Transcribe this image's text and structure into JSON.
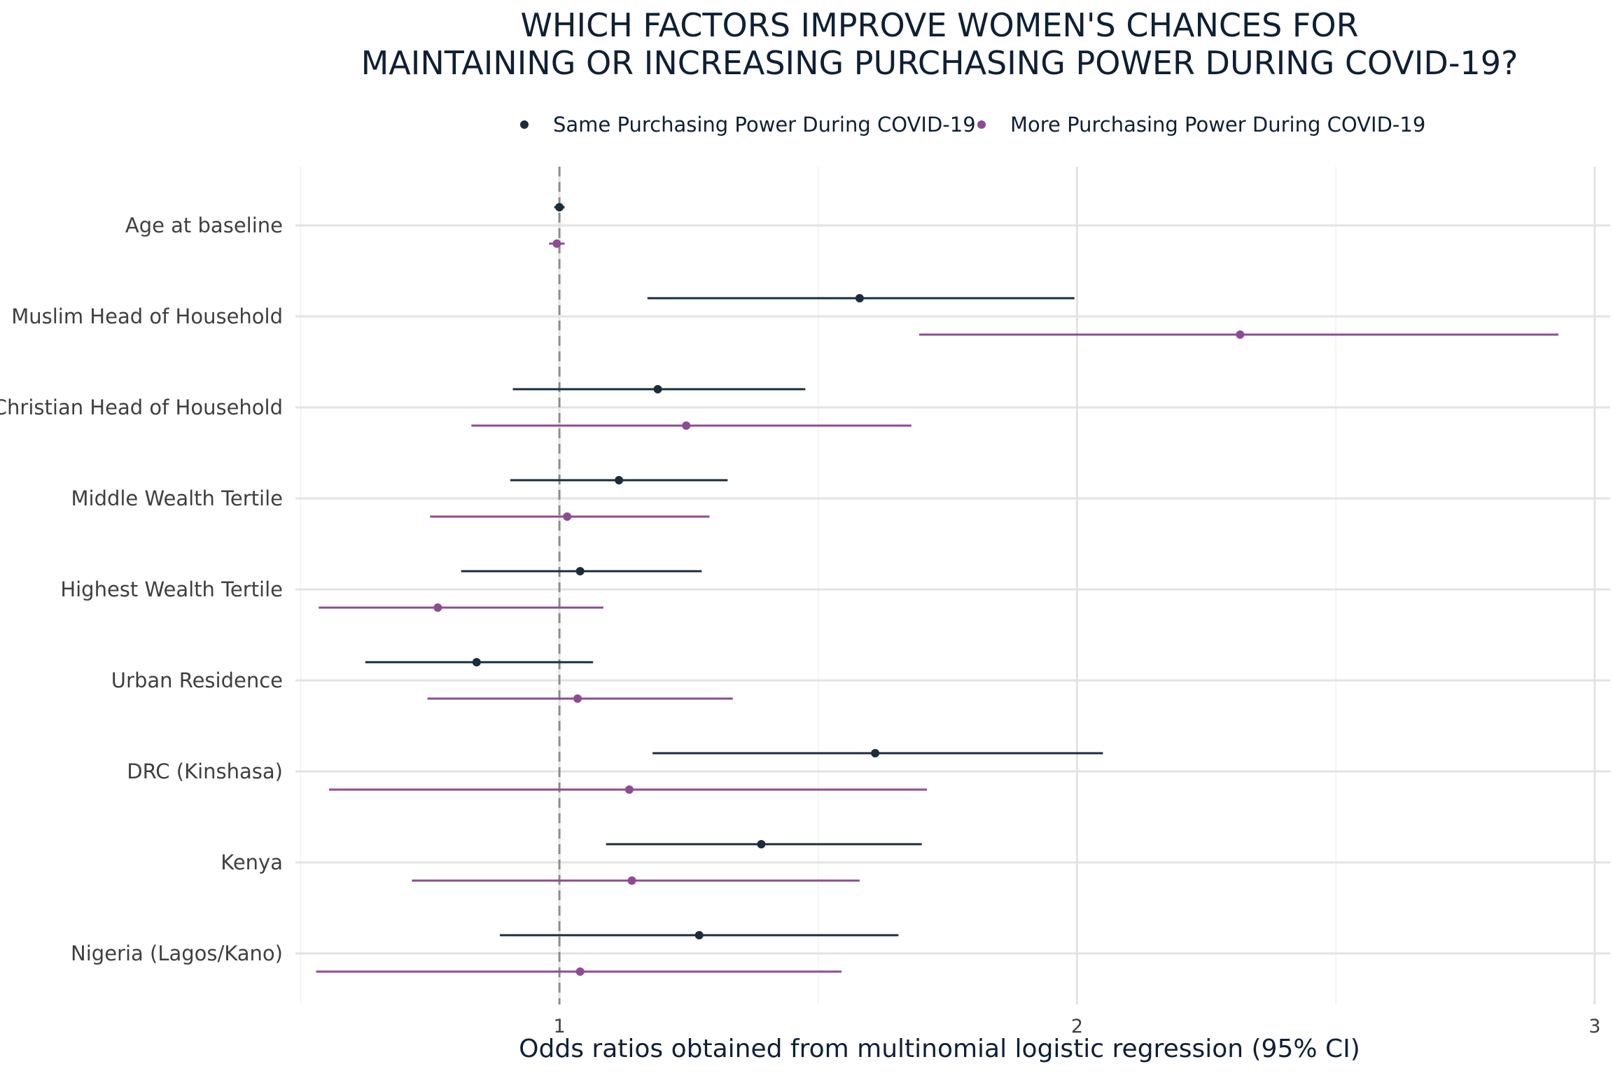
{
  "chart_data": {
    "type": "forest",
    "title": [
      "WHICH FACTORS IMPROVE WOMEN'S CHANCES FOR",
      "MAINTAINING OR INCREASING PURCHASING POWER DURING COVID-19?"
    ],
    "xlabel": "Odds ratios obtained from multinomial logistic regression (95% CI)",
    "ylabel": "",
    "xlim": [
      0.49,
      3.03
    ],
    "xticks": [
      1,
      2,
      3
    ],
    "xtick_labels": [
      "1",
      "2",
      "3"
    ],
    "reference_line": 1,
    "grid": true,
    "legend_position": "top",
    "categories": [
      "Age at baseline",
      "Muslim Head of Household",
      "Christian Head of Household",
      "Middle Wealth Tertile",
      "Highest Wealth Tertile",
      "Urban Residence",
      "DRC (Kinshasa)",
      "Kenya",
      "Nigeria (Lagos/Kano)"
    ],
    "series": [
      {
        "name": "Same Purchasing Power During COVID-19",
        "color": "#1b2d3d",
        "estimate": [
          1.0,
          1.58,
          1.19,
          1.115,
          1.04,
          0.84,
          1.61,
          1.39,
          1.27
        ],
        "lower": [
          0.99,
          1.17,
          0.91,
          0.905,
          0.81,
          0.625,
          1.18,
          1.09,
          0.885
        ],
        "upper": [
          1.01,
          1.995,
          1.475,
          1.325,
          1.275,
          1.065,
          2.05,
          1.7,
          1.655
        ]
      },
      {
        "name": "More Purchasing Power During COVID-19",
        "color": "#8e4b94",
        "estimate": [
          0.995,
          2.315,
          1.245,
          1.015,
          0.765,
          1.035,
          1.135,
          1.14,
          1.04
        ],
        "lower": [
          0.98,
          1.695,
          0.83,
          0.75,
          0.535,
          0.745,
          0.555,
          0.715,
          0.53
        ],
        "upper": [
          1.01,
          2.93,
          1.68,
          1.29,
          1.085,
          1.335,
          1.71,
          1.58,
          1.545
        ]
      }
    ]
  }
}
